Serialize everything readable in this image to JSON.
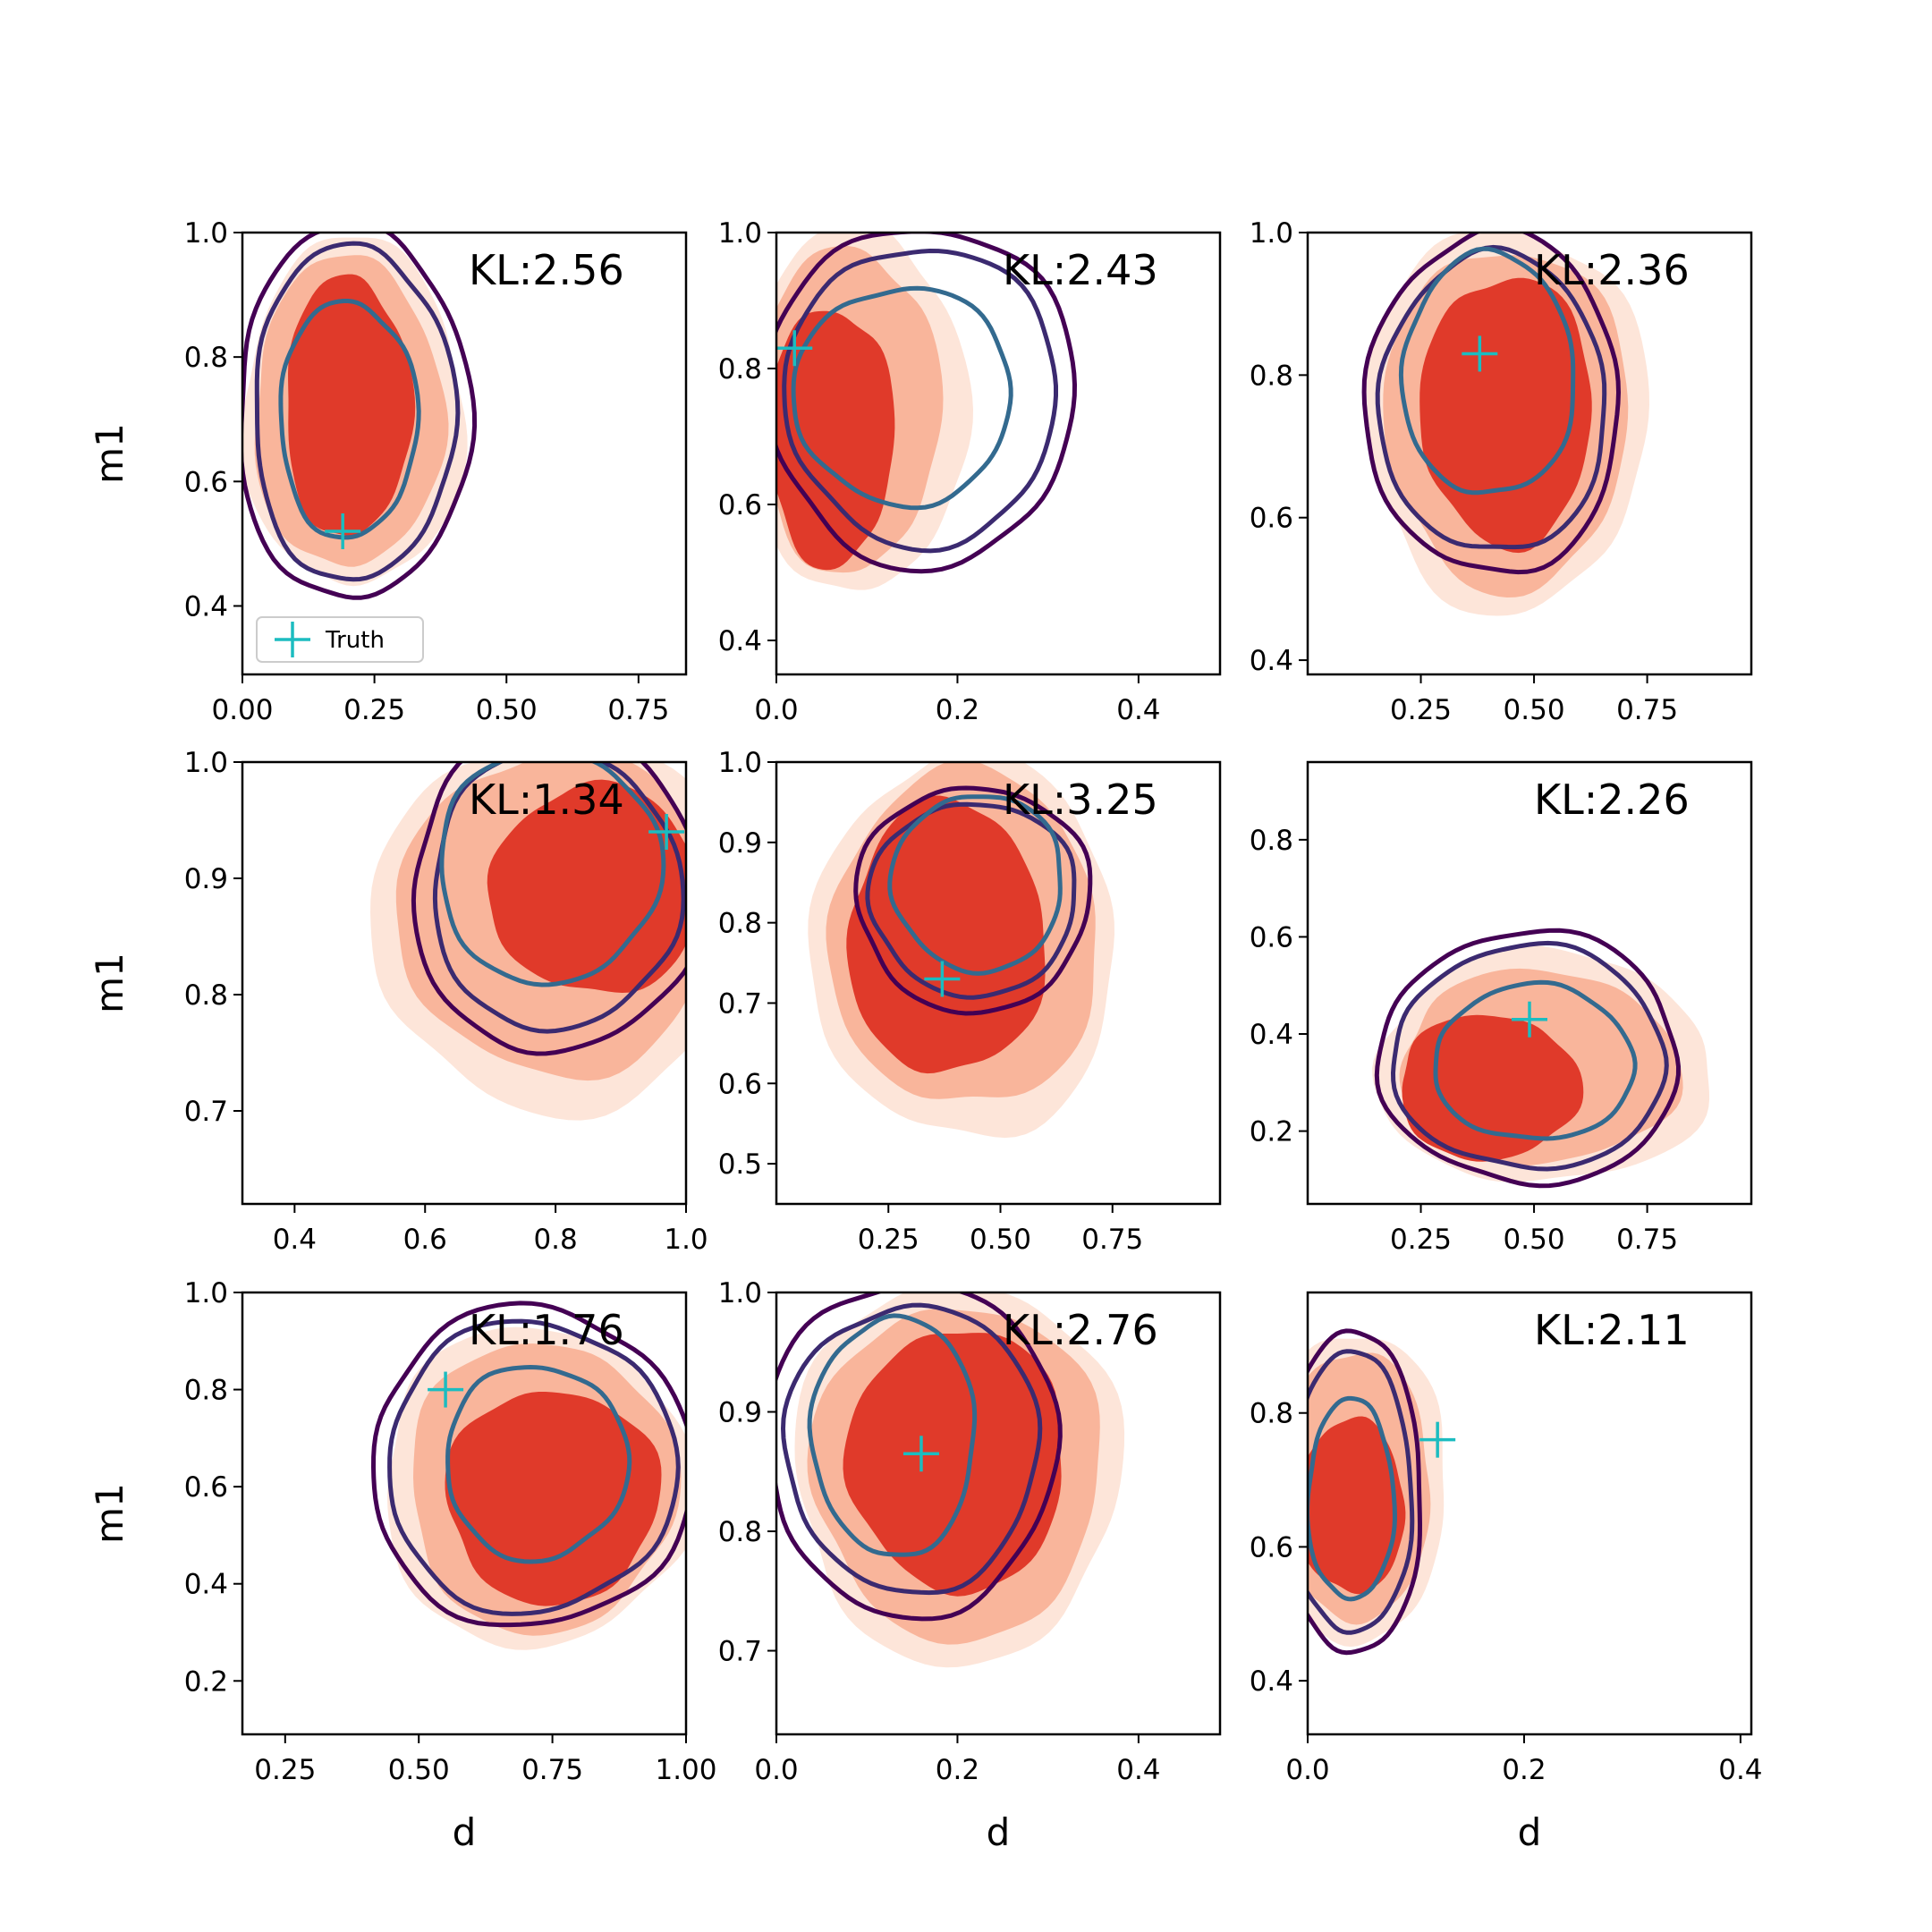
{
  "colors": {
    "fill_outer": "#fde5d9",
    "fill_mid": "#f9b59b",
    "fill_core": "#e03a2a",
    "line_outer": "#440154",
    "line_mid": "#3b2a70",
    "line_inner": "#336a8f",
    "truth": "#1cbcc0"
  },
  "legend": {
    "marker": "+",
    "label": "Truth"
  },
  "chart_data": [
    {
      "type": "contour",
      "row": 0,
      "col": 0,
      "kl_label": "KL:2.56",
      "xlim": [
        0.0,
        0.84
      ],
      "ylim": [
        0.29,
        1.0
      ],
      "xticks": [
        "0.00",
        "0.25",
        "0.50",
        "0.75"
      ],
      "yticks": [
        "0.4",
        "0.6",
        "0.8",
        "1.0"
      ],
      "xlabel": "",
      "ylabel": "m1",
      "truth": [
        0.19,
        0.52
      ],
      "fills": [
        {
          "level": "outer",
          "center": [
            0.21,
            0.71
          ],
          "radius": [
            0.21,
            0.28
          ]
        },
        {
          "level": "mid",
          "center": [
            0.2,
            0.71
          ],
          "radius": [
            0.18,
            0.25
          ]
        },
        {
          "level": "core",
          "center": [
            0.2,
            0.72
          ],
          "radius": [
            0.12,
            0.21
          ]
        }
      ],
      "contours": [
        {
          "level": "outer",
          "center": [
            0.21,
            0.71
          ],
          "radius": [
            0.22,
            0.3
          ]
        },
        {
          "level": "mid",
          "center": [
            0.21,
            0.71
          ],
          "radius": [
            0.19,
            0.27
          ]
        },
        {
          "level": "inner",
          "center": [
            0.2,
            0.7
          ],
          "radius": [
            0.13,
            0.19
          ]
        }
      ],
      "legend": true
    },
    {
      "type": "contour",
      "row": 0,
      "col": 1,
      "kl_label": "KL:2.43",
      "xlim": [
        0.0,
        0.49
      ],
      "ylim": [
        0.35,
        1.0
      ],
      "xticks": [
        "0.0",
        "0.2",
        "0.4"
      ],
      "yticks": [
        "0.4",
        "0.6",
        "0.8",
        "1.0"
      ],
      "xlabel": "",
      "ylabel": "",
      "truth": [
        0.02,
        0.83
      ],
      "fills": [
        {
          "level": "outer",
          "center": [
            0.09,
            0.74
          ],
          "radius": [
            0.12,
            0.27
          ]
        },
        {
          "level": "mid",
          "center": [
            0.08,
            0.74
          ],
          "radius": [
            0.1,
            0.24
          ]
        },
        {
          "level": "core",
          "center": [
            0.06,
            0.7
          ],
          "radius": [
            0.07,
            0.19
          ]
        }
      ],
      "contours": [
        {
          "level": "outer",
          "center": [
            0.16,
            0.76
          ],
          "radius": [
            0.17,
            0.25
          ]
        },
        {
          "level": "mid",
          "center": [
            0.16,
            0.76
          ],
          "radius": [
            0.15,
            0.22
          ]
        },
        {
          "level": "inner",
          "center": [
            0.14,
            0.76
          ],
          "radius": [
            0.12,
            0.16
          ]
        }
      ],
      "legend": false
    },
    {
      "type": "contour",
      "row": 0,
      "col": 2,
      "kl_label": "KL:2.36",
      "xlim": [
        0.0,
        0.98
      ],
      "ylim": [
        0.38,
        1.0
      ],
      "xticks": [
        "0.25",
        "0.50",
        "0.75"
      ],
      "yticks": [
        "0.4",
        "0.6",
        "0.8",
        "1.0"
      ],
      "xlabel": "",
      "ylabel": "",
      "truth": [
        0.38,
        0.83
      ],
      "fills": [
        {
          "level": "outer",
          "center": [
            0.44,
            0.74
          ],
          "radius": [
            0.31,
            0.27
          ]
        },
        {
          "level": "mid",
          "center": [
            0.44,
            0.74
          ],
          "radius": [
            0.27,
            0.24
          ]
        },
        {
          "level": "core",
          "center": [
            0.44,
            0.75
          ],
          "radius": [
            0.19,
            0.19
          ]
        }
      ],
      "contours": [
        {
          "level": "outer",
          "center": [
            0.41,
            0.76
          ],
          "radius": [
            0.28,
            0.24
          ]
        },
        {
          "level": "mid",
          "center": [
            0.41,
            0.76
          ],
          "radius": [
            0.25,
            0.21
          ]
        },
        {
          "level": "inner",
          "center": [
            0.4,
            0.8
          ],
          "radius": [
            0.19,
            0.17
          ]
        }
      ],
      "legend": false
    },
    {
      "type": "contour",
      "row": 1,
      "col": 0,
      "kl_label": "KL:1.34",
      "xlim": [
        0.32,
        1.0
      ],
      "ylim": [
        0.62,
        1.0
      ],
      "xticks": [
        "0.4",
        "0.6",
        "0.8",
        "1.0"
      ],
      "yticks": [
        "0.7",
        "0.8",
        "0.9",
        "1.0"
      ],
      "xlabel": "",
      "ylabel": "m1",
      "truth": [
        0.97,
        0.94
      ],
      "fills": [
        {
          "level": "outer",
          "center": [
            0.8,
            0.86
          ],
          "radius": [
            0.28,
            0.16
          ]
        },
        {
          "level": "mid",
          "center": [
            0.8,
            0.87
          ],
          "radius": [
            0.24,
            0.14
          ]
        },
        {
          "level": "core",
          "center": [
            0.86,
            0.89
          ],
          "radius": [
            0.16,
            0.09
          ]
        }
      ],
      "contours": [
        {
          "level": "outer",
          "center": [
            0.8,
            0.89
          ],
          "radius": [
            0.22,
            0.14
          ]
        },
        {
          "level": "mid",
          "center": [
            0.8,
            0.89
          ],
          "radius": [
            0.19,
            0.12
          ]
        },
        {
          "level": "inner",
          "center": [
            0.79,
            0.91
          ],
          "radius": [
            0.17,
            0.1
          ]
        }
      ],
      "legend": false
    },
    {
      "type": "contour",
      "row": 1,
      "col": 1,
      "kl_label": "KL:3.25",
      "xlim": [
        0.0,
        0.99
      ],
      "ylim": [
        0.45,
        1.0
      ],
      "xticks": [
        "0.25",
        "0.50",
        "0.75"
      ],
      "yticks": [
        "0.5",
        "0.6",
        "0.7",
        "0.8",
        "0.9",
        "1.0"
      ],
      "xlabel": "",
      "ylabel": "",
      "truth": [
        0.37,
        0.73
      ],
      "fills": [
        {
          "level": "outer",
          "center": [
            0.42,
            0.77
          ],
          "radius": [
            0.34,
            0.24
          ]
        },
        {
          "level": "mid",
          "center": [
            0.42,
            0.78
          ],
          "radius": [
            0.3,
            0.21
          ]
        },
        {
          "level": "core",
          "center": [
            0.38,
            0.78
          ],
          "radius": [
            0.22,
            0.17
          ]
        }
      ],
      "contours": [
        {
          "level": "outer",
          "center": [
            0.44,
            0.83
          ],
          "radius": [
            0.26,
            0.14
          ]
        },
        {
          "level": "mid",
          "center": [
            0.44,
            0.83
          ],
          "radius": [
            0.23,
            0.12
          ]
        },
        {
          "level": "inner",
          "center": [
            0.45,
            0.85
          ],
          "radius": [
            0.19,
            0.11
          ]
        }
      ],
      "legend": false
    },
    {
      "type": "contour",
      "row": 1,
      "col": 2,
      "kl_label": "KL:2.26",
      "xlim": [
        0.0,
        0.98
      ],
      "ylim": [
        0.05,
        0.96
      ],
      "xticks": [
        "0.25",
        "0.50",
        "0.75"
      ],
      "yticks": [
        "0.2",
        "0.4",
        "0.6",
        "0.8"
      ],
      "xlabel": "",
      "ylabel": "",
      "truth": [
        0.49,
        0.43
      ],
      "fills": [
        {
          "level": "outer",
          "center": [
            0.52,
            0.33
          ],
          "radius": [
            0.37,
            0.24
          ]
        },
        {
          "level": "mid",
          "center": [
            0.51,
            0.33
          ],
          "radius": [
            0.31,
            0.2
          ]
        },
        {
          "level": "core",
          "center": [
            0.4,
            0.29
          ],
          "radius": [
            0.2,
            0.15
          ]
        }
      ],
      "contours": [
        {
          "level": "outer",
          "center": [
            0.49,
            0.35
          ],
          "radius": [
            0.33,
            0.26
          ]
        },
        {
          "level": "mid",
          "center": [
            0.49,
            0.35
          ],
          "radius": [
            0.3,
            0.23
          ]
        },
        {
          "level": "inner",
          "center": [
            0.5,
            0.34
          ],
          "radius": [
            0.22,
            0.16
          ]
        }
      ],
      "legend": false
    },
    {
      "type": "contour",
      "row": 2,
      "col": 0,
      "kl_label": "KL:1.76",
      "xlim": [
        0.17,
        1.0
      ],
      "ylim": [
        0.09,
        1.0
      ],
      "xticks": [
        "0.25",
        "0.50",
        "0.75",
        "1.00"
      ],
      "yticks": [
        "0.2",
        "0.4",
        "0.6",
        "0.8",
        "1.0"
      ],
      "xlabel": "d",
      "ylabel": "m1",
      "truth": [
        0.55,
        0.8
      ],
      "fills": [
        {
          "level": "outer",
          "center": [
            0.72,
            0.6
          ],
          "radius": [
            0.29,
            0.33
          ]
        },
        {
          "level": "mid",
          "center": [
            0.73,
            0.6
          ],
          "radius": [
            0.25,
            0.3
          ]
        },
        {
          "level": "core",
          "center": [
            0.75,
            0.58
          ],
          "radius": [
            0.2,
            0.22
          ]
        }
      ],
      "contours": [
        {
          "level": "outer",
          "center": [
            0.71,
            0.64
          ],
          "radius": [
            0.3,
            0.33
          ]
        },
        {
          "level": "mid",
          "center": [
            0.71,
            0.64
          ],
          "radius": [
            0.27,
            0.3
          ]
        },
        {
          "level": "inner",
          "center": [
            0.72,
            0.65
          ],
          "radius": [
            0.17,
            0.2
          ]
        }
      ],
      "legend": false
    },
    {
      "type": "contour",
      "row": 2,
      "col": 1,
      "kl_label": "KL:2.76",
      "xlim": [
        0.0,
        0.49
      ],
      "ylim": [
        0.63,
        1.0
      ],
      "xticks": [
        "0.0",
        "0.2",
        "0.4"
      ],
      "yticks": [
        "0.7",
        "0.8",
        "0.9",
        "1.0"
      ],
      "xlabel": "d",
      "ylabel": "",
      "truth": [
        0.16,
        0.865
      ],
      "fills": [
        {
          "level": "outer",
          "center": [
            0.2,
            0.85
          ],
          "radius": [
            0.18,
            0.16
          ]
        },
        {
          "level": "mid",
          "center": [
            0.2,
            0.85
          ],
          "radius": [
            0.16,
            0.14
          ]
        },
        {
          "level": "core",
          "center": [
            0.2,
            0.86
          ],
          "radius": [
            0.12,
            0.11
          ]
        }
      ],
      "contours": [
        {
          "level": "outer",
          "center": [
            0.15,
            0.87
          ],
          "radius": [
            0.16,
            0.14
          ]
        },
        {
          "level": "mid",
          "center": [
            0.15,
            0.87
          ],
          "radius": [
            0.14,
            0.12
          ]
        },
        {
          "level": "inner",
          "center": [
            0.13,
            0.88
          ],
          "radius": [
            0.09,
            0.1
          ]
        }
      ],
      "legend": false
    },
    {
      "type": "contour",
      "row": 2,
      "col": 2,
      "kl_label": "KL:2.11",
      "xlim": [
        0.0,
        0.41
      ],
      "ylim": [
        0.32,
        0.98
      ],
      "xticks": [
        "0.0",
        "0.2",
        "0.4"
      ],
      "yticks": [
        "0.4",
        "0.6",
        "0.8"
      ],
      "xlabel": "d",
      "ylabel": "",
      "truth": [
        0.12,
        0.76
      ],
      "fills": [
        {
          "level": "outer",
          "center": [
            0.04,
            0.69
          ],
          "radius": [
            0.09,
            0.23
          ]
        },
        {
          "level": "mid",
          "center": [
            0.04,
            0.69
          ],
          "radius": [
            0.075,
            0.2
          ]
        },
        {
          "level": "core",
          "center": [
            0.04,
            0.66
          ],
          "radius": [
            0.05,
            0.13
          ]
        }
      ],
      "contours": [
        {
          "level": "outer",
          "center": [
            0.04,
            0.68
          ],
          "radius": [
            0.066,
            0.24
          ]
        },
        {
          "level": "mid",
          "center": [
            0.04,
            0.68
          ],
          "radius": [
            0.057,
            0.21
          ]
        },
        {
          "level": "inner",
          "center": [
            0.04,
            0.67
          ],
          "radius": [
            0.04,
            0.15
          ]
        }
      ],
      "legend": false
    }
  ]
}
